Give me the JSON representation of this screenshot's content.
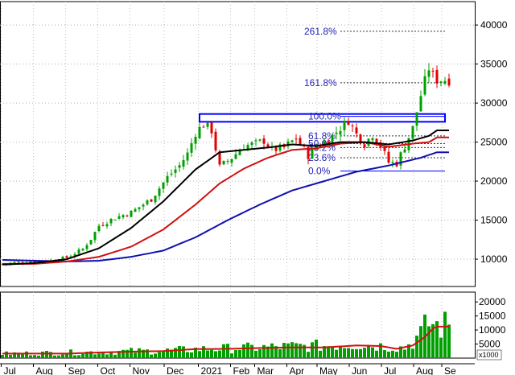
{
  "chart_data": [
    {
      "type": "candlestick",
      "title": "",
      "ylim": [
        6500,
        43000
      ],
      "y_ticks": [
        10000,
        15000,
        20000,
        25000,
        30000,
        35000,
        40000
      ],
      "x_tick_labels": [
        "Jul",
        "Aug",
        "Sep",
        "Oct",
        "Nov",
        "Dec",
        "2021",
        "Feb",
        "Mar",
        "Apr",
        "May",
        "Jun",
        "Jul",
        "Aug",
        "Se"
      ],
      "x_tick_positions": [
        0.5,
        8.5,
        16.5,
        24.5,
        32.5,
        41,
        49.5,
        57.5,
        63.5,
        71.5,
        79,
        87,
        95,
        103,
        110
      ],
      "num_weeks": 112,
      "close_anchors": [
        [
          0,
          9400
        ],
        [
          6,
          9700
        ],
        [
          12,
          9800
        ],
        [
          16,
          10200
        ],
        [
          20,
          11300
        ],
        [
          22,
          12600
        ],
        [
          24,
          14300
        ],
        [
          28,
          15300
        ],
        [
          32,
          16000
        ],
        [
          37,
          17700
        ],
        [
          41,
          20500
        ],
        [
          44,
          22000
        ],
        [
          46,
          23500
        ],
        [
          48,
          26200
        ],
        [
          50,
          27300
        ],
        [
          52,
          26500
        ],
        [
          54,
          21800
        ],
        [
          57,
          23000
        ],
        [
          60,
          24500
        ],
        [
          63,
          24800
        ],
        [
          65,
          25200
        ],
        [
          67,
          24000
        ],
        [
          70,
          24300
        ],
        [
          73,
          25500
        ],
        [
          76,
          23300
        ],
        [
          78,
          24500
        ],
        [
          80,
          25000
        ],
        [
          82,
          25800
        ],
        [
          84,
          26800
        ],
        [
          86,
          27800
        ],
        [
          88,
          26000
        ],
        [
          90,
          24800
        ],
        [
          92,
          26000
        ],
        [
          94,
          24500
        ],
        [
          96,
          22400
        ],
        [
          98,
          22300
        ],
        [
          100,
          24500
        ],
        [
          102,
          26800
        ],
        [
          104,
          31000
        ],
        [
          106,
          34500
        ],
        [
          107,
          33500
        ],
        [
          108,
          33000
        ]
      ],
      "ma_short": [
        [
          0,
          9300
        ],
        [
          8,
          9500
        ],
        [
          16,
          10000
        ],
        [
          24,
          11400
        ],
        [
          32,
          14000
        ],
        [
          40,
          17400
        ],
        [
          48,
          21500
        ],
        [
          54,
          23700
        ],
        [
          60,
          24000
        ],
        [
          66,
          24300
        ],
        [
          72,
          24700
        ],
        [
          78,
          24500
        ],
        [
          84,
          25000
        ],
        [
          90,
          25000
        ],
        [
          96,
          24700
        ],
        [
          102,
          25200
        ],
        [
          106,
          25800
        ],
        [
          108,
          26500
        ]
      ],
      "ma_mid": [
        [
          0,
          9400
        ],
        [
          8,
          9400
        ],
        [
          16,
          9700
        ],
        [
          24,
          10300
        ],
        [
          32,
          11600
        ],
        [
          40,
          13800
        ],
        [
          48,
          17000
        ],
        [
          54,
          19700
        ],
        [
          60,
          21600
        ],
        [
          66,
          23000
        ],
        [
          72,
          24000
        ],
        [
          78,
          24200
        ],
        [
          84,
          24800
        ],
        [
          90,
          25000
        ],
        [
          96,
          24400
        ],
        [
          102,
          24800
        ],
        [
          106,
          25000
        ],
        [
          108,
          25600
        ]
      ],
      "ma_long": [
        [
          0,
          9900
        ],
        [
          8,
          9800
        ],
        [
          16,
          9700
        ],
        [
          24,
          9800
        ],
        [
          32,
          10300
        ],
        [
          40,
          11100
        ],
        [
          48,
          12800
        ],
        [
          56,
          15000
        ],
        [
          64,
          17000
        ],
        [
          72,
          18800
        ],
        [
          80,
          20000
        ],
        [
          88,
          21200
        ],
        [
          96,
          22000
        ],
        [
          104,
          23000
        ],
        [
          108,
          23700
        ]
      ],
      "resistance_zone": [
        27600,
        28600
      ],
      "fib_start_week": 84,
      "fibonacci_levels": [
        {
          "label": "261.8%",
          "value": 39200
        },
        {
          "label": "161.8%",
          "value": 32600
        },
        {
          "label": "100.0%",
          "value": 28300
        },
        {
          "label": "61.8%",
          "value": 25800
        },
        {
          "label": "50.0%",
          "value": 24800
        },
        {
          "label": "38.2%",
          "value": 24300
        },
        {
          "label": "23.6%",
          "value": 23000
        },
        {
          "label": "0.0%",
          "value": 21300
        }
      ],
      "colors": {
        "up": "#00a000",
        "down": "#e00000",
        "ma_short": "#000000",
        "ma_mid": "#d01010",
        "ma_long": "#1010b0",
        "fib": "#2323b4",
        "fib_solid": "#0000ff"
      }
    },
    {
      "type": "bar",
      "ylim": [
        0,
        23500
      ],
      "y_ticks": [
        5000,
        10000,
        15000,
        20000
      ],
      "unit_label": "x1000",
      "volume_anchors": [
        [
          0,
          1500
        ],
        [
          20,
          2000
        ],
        [
          30,
          2300
        ],
        [
          40,
          2500
        ],
        [
          48,
          3000
        ],
        [
          56,
          3300
        ],
        [
          64,
          3600
        ],
        [
          72,
          4000
        ],
        [
          80,
          4200
        ],
        [
          88,
          4800
        ],
        [
          96,
          4000
        ],
        [
          100,
          3500
        ],
        [
          104,
          8000
        ],
        [
          106,
          12000
        ],
        [
          108,
          11000
        ]
      ],
      "volume_ma": [
        [
          0,
          1600
        ],
        [
          16,
          1600
        ],
        [
          24,
          2000
        ],
        [
          32,
          2300
        ],
        [
          40,
          2500
        ],
        [
          48,
          3200
        ],
        [
          56,
          3300
        ],
        [
          64,
          3600
        ],
        [
          72,
          3800
        ],
        [
          80,
          3800
        ],
        [
          88,
          4500
        ],
        [
          94,
          4300
        ],
        [
          98,
          3300
        ],
        [
          102,
          4500
        ],
        [
          105,
          7500
        ],
        [
          107,
          10500
        ],
        [
          108,
          11200
        ]
      ],
      "colors": {
        "bar": "#00a000",
        "ma": "#d01010"
      }
    }
  ]
}
